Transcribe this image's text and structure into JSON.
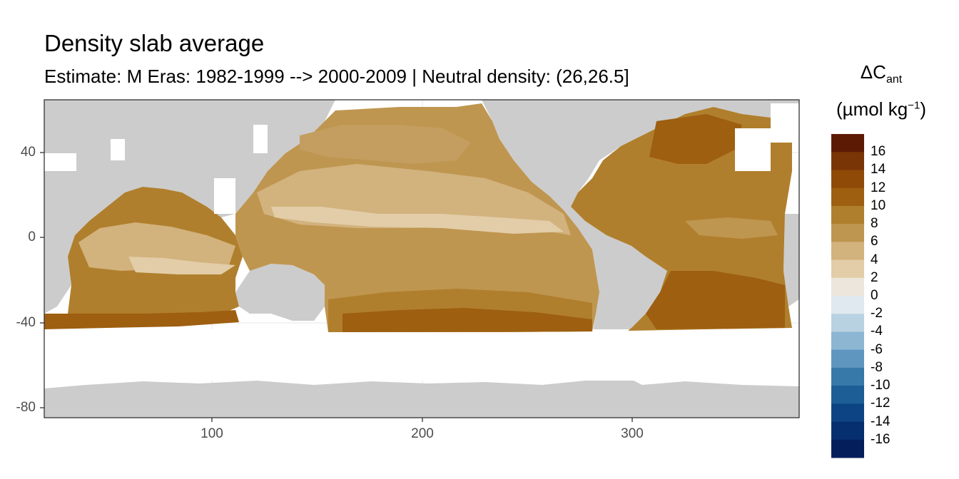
{
  "title": "Density slab average",
  "subtitle": "Estimate: M Eras: 1982-1999 --> 2000-2009 | Neutral density: (26,26.5]",
  "legend": {
    "title_main": "ΔC",
    "title_sub": "ant",
    "unit_main": "(µmol kg",
    "unit_sup": "−1",
    "unit_close": ")",
    "labels": [
      "16",
      "14",
      "12",
      "10",
      "8",
      "6",
      "4",
      "2",
      "0",
      "-2",
      "-4",
      "-6",
      "-8",
      "-10",
      "-12",
      "-14",
      "-16"
    ],
    "colors": [
      "#5c1a05",
      "#7a3507",
      "#8f4a08",
      "#9e5f10",
      "#b07f2d",
      "#bf9650",
      "#d2b27d",
      "#e2cda8",
      "#ece6dc",
      "#dfe9ef",
      "#b9d2e2",
      "#8cb6d2",
      "#5e96bf",
      "#3779a9",
      "#1c5e95",
      "#0d4584",
      "#062f70",
      "#041e5c"
    ]
  },
  "map_data": {
    "x_ticks": [
      "100",
      "200",
      "300"
    ],
    "y_ticks": [
      "40",
      "0",
      "-40",
      "-80"
    ],
    "x_range": [
      20,
      380
    ],
    "y_range": [
      -85,
      65
    ],
    "land_color": "#cccccc",
    "no_data_color": "#ffffff"
  }
}
